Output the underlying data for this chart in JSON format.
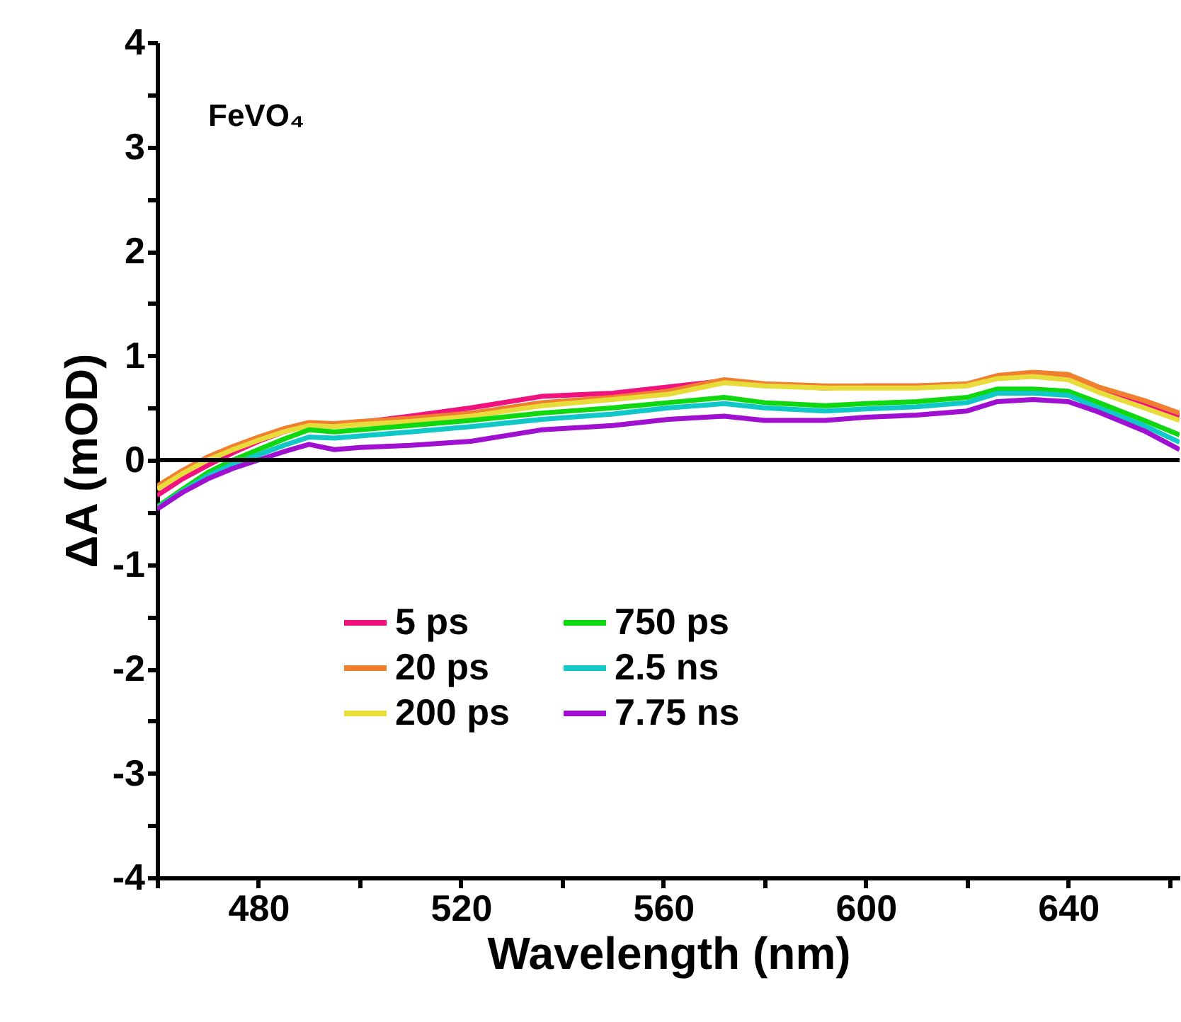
{
  "chart_data": {
    "type": "line",
    "xlabel": "Wavelength (nm)",
    "ylabel": "ΔA (mOD)",
    "annotations": [
      "FeVO₄"
    ],
    "x": [
      460,
      465,
      470,
      475,
      480,
      485,
      490,
      495,
      500,
      510,
      522,
      536,
      550,
      561,
      572,
      580,
      592,
      600,
      610,
      620,
      626,
      633,
      640,
      646,
      655,
      662
    ],
    "series": [
      {
        "name": "5 ps",
        "color": "#f0127f",
        "values": [
          -0.34,
          -0.18,
          -0.05,
          0.07,
          0.18,
          0.27,
          0.34,
          0.34,
          0.36,
          0.42,
          0.5,
          0.61,
          0.64,
          0.7,
          0.76,
          0.72,
          0.69,
          0.71,
          0.71,
          0.72,
          0.8,
          0.83,
          0.8,
          0.68,
          0.55,
          0.42
        ]
      },
      {
        "name": "20 ps",
        "color": "#f08030",
        "values": [
          -0.25,
          -0.1,
          0.03,
          0.13,
          0.22,
          0.3,
          0.36,
          0.35,
          0.37,
          0.4,
          0.45,
          0.55,
          0.6,
          0.66,
          0.77,
          0.73,
          0.71,
          0.71,
          0.71,
          0.73,
          0.81,
          0.84,
          0.82,
          0.7,
          0.57,
          0.45
        ]
      },
      {
        "name": "200 ps",
        "color": "#e8dc3a",
        "values": [
          -0.28,
          -0.13,
          0.0,
          0.1,
          0.19,
          0.27,
          0.33,
          0.32,
          0.34,
          0.37,
          0.42,
          0.52,
          0.58,
          0.63,
          0.74,
          0.71,
          0.69,
          0.69,
          0.69,
          0.71,
          0.78,
          0.8,
          0.77,
          0.65,
          0.5,
          0.38
        ]
      },
      {
        "name": "750 ps",
        "color": "#10d810",
        "values": [
          -0.45,
          -0.28,
          -0.12,
          0.0,
          0.1,
          0.2,
          0.29,
          0.27,
          0.29,
          0.33,
          0.38,
          0.45,
          0.5,
          0.55,
          0.6,
          0.55,
          0.52,
          0.54,
          0.56,
          0.6,
          0.68,
          0.68,
          0.66,
          0.55,
          0.38,
          0.24
        ]
      },
      {
        "name": "2.5 ns",
        "color": "#10c8c8",
        "values": [
          -0.46,
          -0.3,
          -0.15,
          -0.04,
          0.05,
          0.14,
          0.22,
          0.21,
          0.23,
          0.27,
          0.32,
          0.39,
          0.44,
          0.5,
          0.54,
          0.5,
          0.47,
          0.49,
          0.51,
          0.55,
          0.64,
          0.64,
          0.62,
          0.5,
          0.33,
          0.17
        ]
      },
      {
        "name": "7.75 ns",
        "color": "#a010d0",
        "values": [
          -0.47,
          -0.31,
          -0.18,
          -0.08,
          0.0,
          0.08,
          0.15,
          0.1,
          0.12,
          0.14,
          0.18,
          0.29,
          0.33,
          0.39,
          0.42,
          0.38,
          0.38,
          0.41,
          0.43,
          0.47,
          0.56,
          0.58,
          0.56,
          0.46,
          0.28,
          0.1
        ]
      }
    ],
    "xlim": [
      460,
      662
    ],
    "xticks": [
      {
        "value": 460,
        "label": null
      },
      480,
      {
        "value": 500,
        "label": null
      },
      520,
      {
        "value": 540,
        "label": null
      },
      560,
      {
        "value": 580,
        "label": null
      },
      600,
      {
        "value": 620,
        "label": null
      },
      640,
      {
        "value": 660,
        "label": null
      }
    ],
    "ylim": [
      -4,
      4
    ],
    "yticks": [
      -4,
      {
        "value": -3.5,
        "label": null
      },
      -3,
      {
        "value": -2.5,
        "label": null
      },
      -2,
      {
        "value": -1.5,
        "label": null
      },
      -1,
      {
        "value": -0.5,
        "label": null
      },
      0,
      {
        "value": 0.5,
        "label": null
      },
      1,
      {
        "value": 1.5,
        "label": null
      },
      2,
      {
        "value": 2.5,
        "label": null
      },
      3,
      {
        "value": 3.5,
        "label": null
      },
      4
    ],
    "ref_lines": [
      {
        "axis": "y",
        "value": 0,
        "color": "#000000"
      }
    ],
    "grid": false,
    "legend": "bottom left",
    "line_style": "solid",
    "marker": "none"
  }
}
